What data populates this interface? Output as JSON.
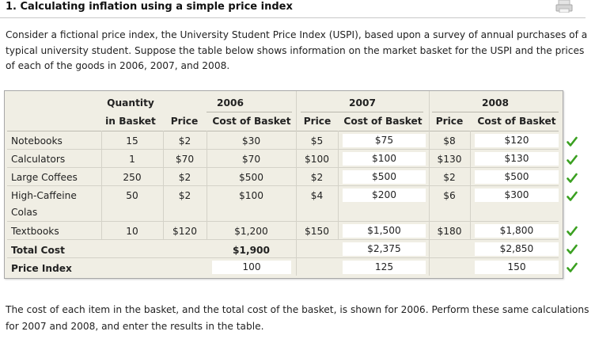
{
  "title": "1. Calculating inflation using a simple price index",
  "intro": "Consider a fictional price index, the University Student Price Index (USPI), based upon a survey of annual purchases of a typical university student. Suppose the table below shows information on the market basket for the USPI and the prices of each of the goods in 2006, 2007, and 2008.",
  "table": {
    "header": {
      "quantity_line1": "Quantity",
      "quantity_line2": "in Basket",
      "years": [
        "2006",
        "2007",
        "2008"
      ],
      "price": "Price",
      "cost": "Cost of Basket"
    },
    "rows": [
      {
        "item": "Notebooks",
        "qty": "15",
        "p2006": "$2",
        "c2006": "$30",
        "p2007": "$5",
        "c2007": "$75",
        "p2008": "$8",
        "c2008": "$120"
      },
      {
        "item": "Calculators",
        "qty": "1",
        "p2006": "$70",
        "c2006": "$70",
        "p2007": "$100",
        "c2007": "$100",
        "p2008": "$130",
        "c2008": "$130"
      },
      {
        "item": "Large Coffees",
        "qty": "250",
        "p2006": "$2",
        "c2006": "$500",
        "p2007": "$2",
        "c2007": "$500",
        "p2008": "$2",
        "c2008": "$500"
      },
      {
        "item": "High-Caffeine",
        "item_line2": "Colas",
        "qty": "50",
        "p2006": "$2",
        "c2006": "$100",
        "p2007": "$4",
        "c2007": "$200",
        "p2008": "$6",
        "c2008": "$300"
      },
      {
        "item": "Textbooks",
        "qty": "10",
        "p2006": "$120",
        "c2006": "$1,200",
        "p2007": "$150",
        "c2007": "$1,500",
        "p2008": "$180",
        "c2008": "$1,800"
      }
    ],
    "total": {
      "label": "Total Cost",
      "c2006": "$1,900",
      "c2007": "$2,375",
      "c2008": "$2,850"
    },
    "index": {
      "label": "Price Index",
      "v2006": "100",
      "v2007": "125",
      "v2008": "150"
    }
  },
  "check_color": "#3aa020",
  "footer": "The cost of each item in the basket, and the total cost of the basket, is shown for 2006. Perform these same calculations for 2007 and 2008, and enter the results in the table."
}
